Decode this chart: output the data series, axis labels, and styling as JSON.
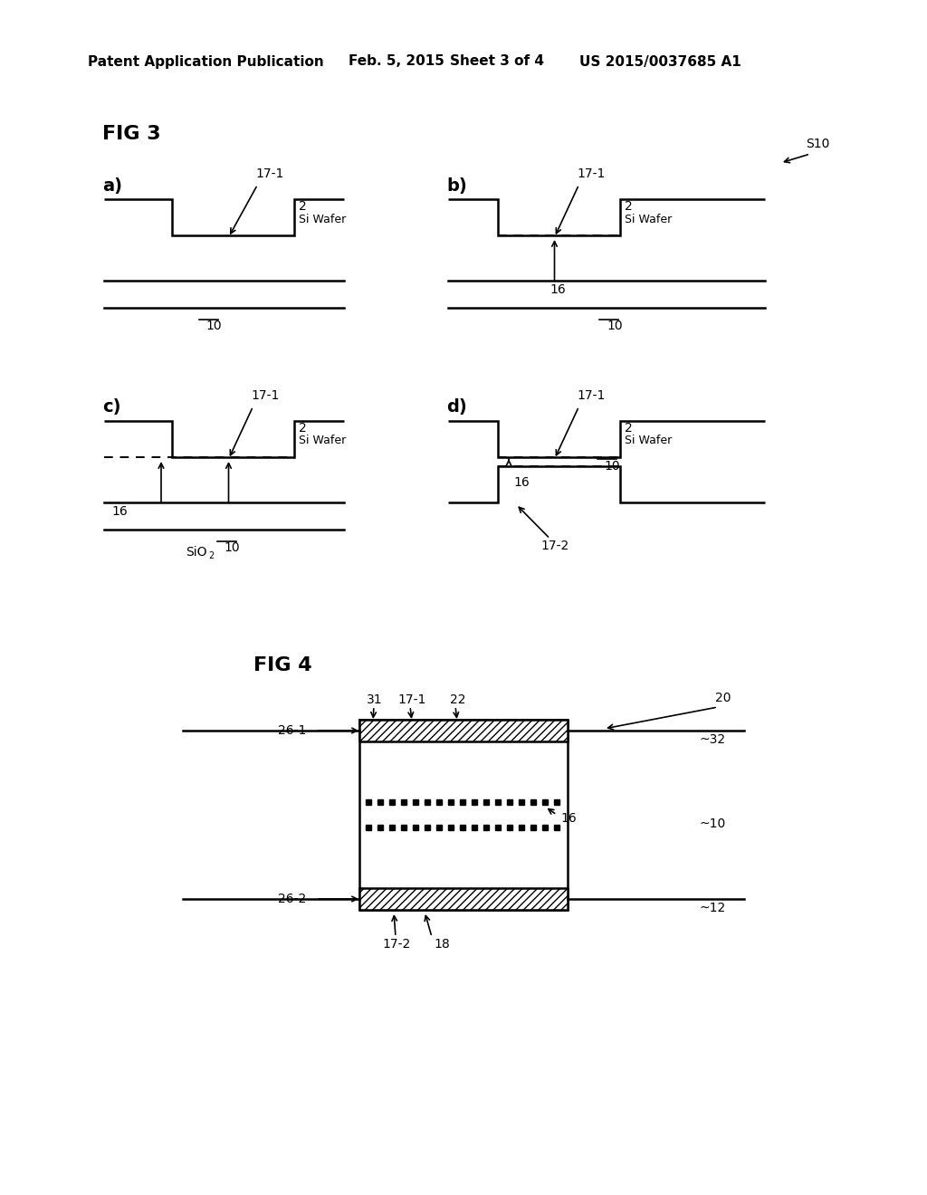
{
  "bg_color": "#ffffff",
  "header_left": "Patent Application Publication",
  "header_mid1": "Feb. 5, 2015",
  "header_mid2": "Sheet 3 of 4",
  "header_right": "US 2015/0037685 A1",
  "fig3_label": "FIG 3",
  "fig4_label": "FIG 4",
  "lw_main": 1.8,
  "lw_dash": 1.4,
  "font_label": 14,
  "font_small": 10,
  "font_tiny": 9,
  "font_fig": 16,
  "font_ref": 11
}
